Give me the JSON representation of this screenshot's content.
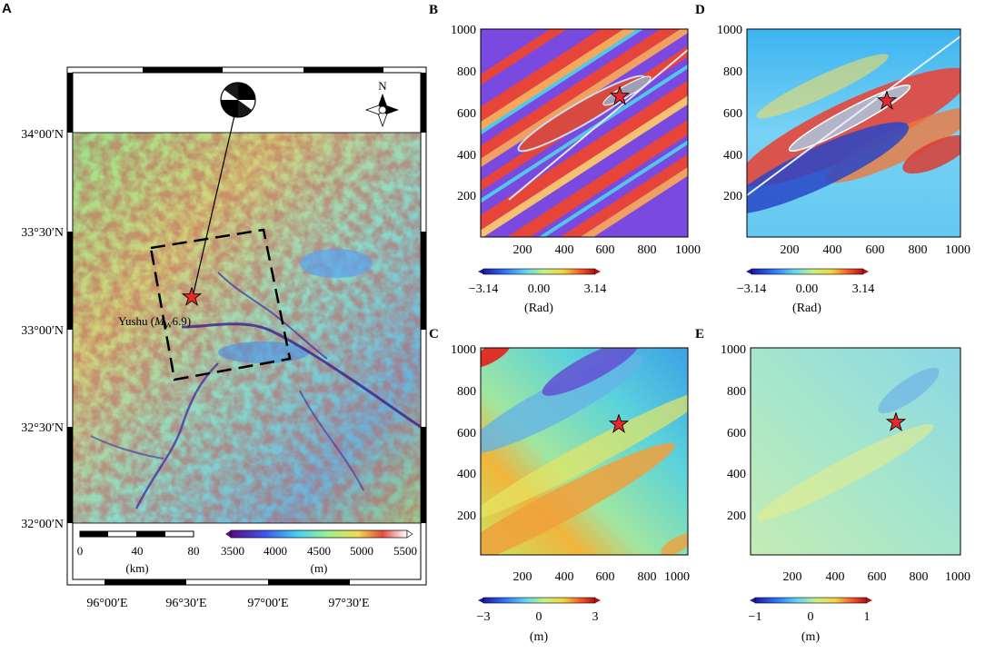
{
  "panels": {
    "A": {
      "label": "A",
      "lat_ticks": [
        "34°00′N",
        "33°30′N",
        "33°00′N",
        "32°30′N",
        "32°00′N"
      ],
      "lon_ticks": [
        "96°00′E",
        "96°30′E",
        "97°00′E",
        "97°30′E"
      ],
      "north_label": "N",
      "epicenter_label": "Yushu (",
      "epicenter_m": "M",
      "epicenter_sub": "W",
      "epicenter_mag": "6.9)",
      "scale_bar": {
        "ticks": [
          "0",
          "40",
          "80"
        ],
        "unit": "(km)"
      },
      "colorbar": {
        "ticks": [
          "3500",
          "4000",
          "4500",
          "5000",
          "5500"
        ],
        "unit": "(m)"
      }
    },
    "B": {
      "label": "B",
      "x_ticks": [
        "200",
        "400",
        "600",
        "800",
        "1000"
      ],
      "y_ticks": [
        "1000",
        "800",
        "600",
        "400",
        "200"
      ],
      "colorbar": {
        "ticks": [
          "−3.14",
          "0.00",
          "3.14"
        ],
        "unit": "(Rad)"
      }
    },
    "C": {
      "label": "C",
      "x_ticks": [
        "200",
        "400",
        "600",
        "800",
        "1000"
      ],
      "y_ticks": [
        "1000",
        "800",
        "600",
        "400",
        "200"
      ],
      "colorbar": {
        "ticks": [
          "−3",
          "0",
          "3"
        ],
        "unit": "(m)"
      }
    },
    "D": {
      "label": "D",
      "x_ticks": [
        "200",
        "400",
        "600",
        "800",
        "1000"
      ],
      "y_ticks": [
        "1000",
        "800",
        "600",
        "400",
        "200"
      ],
      "colorbar": {
        "ticks": [
          "−3.14",
          "0.00",
          "3.14"
        ],
        "unit": "(Rad)"
      }
    },
    "E": {
      "label": "E",
      "x_ticks": [
        "200",
        "400",
        "600",
        "800",
        "1000"
      ],
      "y_ticks": [
        "1000",
        "800",
        "600",
        "400",
        "200"
      ],
      "colorbar": {
        "ticks": [
          "−1",
          "0",
          "1"
        ],
        "unit": "(m)"
      }
    }
  },
  "chart_data": [
    {
      "type": "heatmap",
      "panel": "A",
      "content": "elevation map",
      "lat_range": [
        32.0,
        34.0
      ],
      "lon_range": [
        96.0,
        97.5
      ],
      "colorbar_range": [
        3500,
        5500
      ],
      "colorbar_unit": "(m)",
      "epicenter": {
        "lon": 96.6,
        "lat": 33.05
      }
    },
    {
      "type": "heatmap",
      "panel": "B",
      "xlim": [
        0,
        1000
      ],
      "ylim": [
        0,
        1000
      ],
      "colorbar_range": [
        -3.14,
        3.14
      ],
      "colorbar_unit": "(Rad)",
      "epicenter": {
        "x": 670,
        "y": 670
      }
    },
    {
      "type": "heatmap",
      "panel": "C",
      "xlim": [
        0,
        1000
      ],
      "ylim": [
        0,
        1000
      ],
      "colorbar_range": [
        -3,
        3
      ],
      "colorbar_unit": "(m)",
      "epicenter": {
        "x": 680,
        "y": 650
      }
    },
    {
      "type": "heatmap",
      "panel": "D",
      "xlim": [
        0,
        1000
      ],
      "ylim": [
        0,
        1000
      ],
      "colorbar_range": [
        -3.14,
        3.14
      ],
      "colorbar_unit": "(Rad)",
      "epicenter": {
        "x": 670,
        "y": 660
      }
    },
    {
      "type": "heatmap",
      "panel": "E",
      "xlim": [
        0,
        1000
      ],
      "ylim": [
        0,
        1000
      ],
      "colorbar_range": [
        -1,
        1
      ],
      "colorbar_unit": "(m)",
      "epicenter": {
        "x": 670,
        "y": 650
      }
    }
  ]
}
